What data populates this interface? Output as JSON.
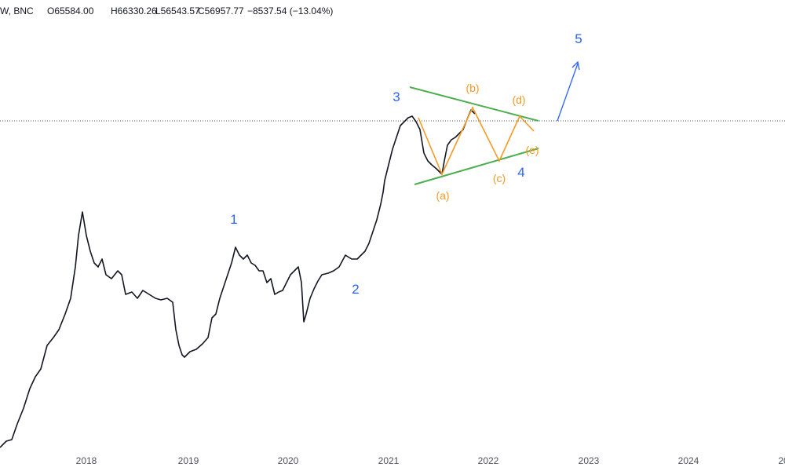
{
  "header": {
    "symbol": "W, BNC",
    "open": "O65584.00",
    "high": "H66330.26",
    "low": "L56543.57",
    "close": "C56957.77",
    "change": "−8537.54 (−13.04%)"
  },
  "waves": {
    "primary": [
      "1",
      "2",
      "3",
      "4",
      "5"
    ],
    "sub": [
      "(a)",
      "(b)",
      "(c)",
      "(d)",
      "(e)"
    ]
  },
  "x_axis": [
    "2018",
    "2019",
    "2020",
    "2021",
    "2022",
    "2023",
    "2024",
    "20"
  ]
}
